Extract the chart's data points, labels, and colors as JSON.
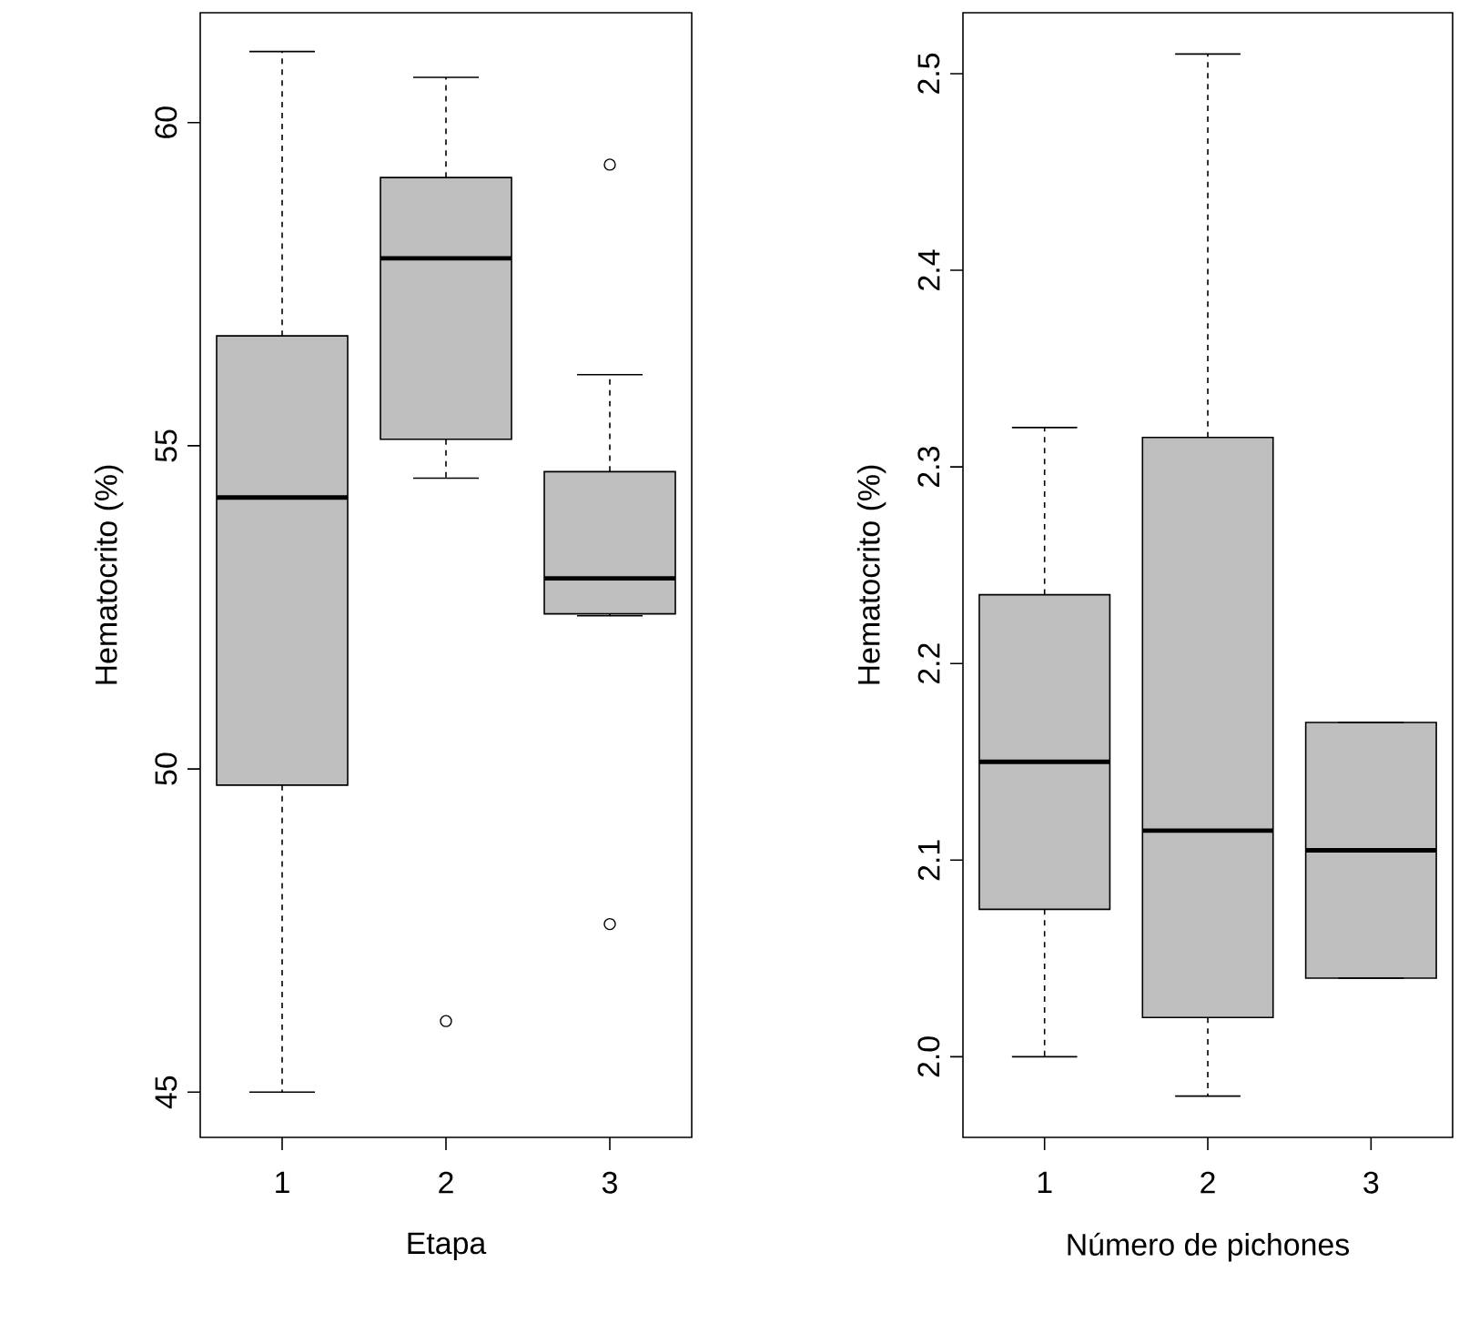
{
  "chart_data": [
    {
      "type": "box",
      "categories": [
        "1",
        "2",
        "3"
      ],
      "xlabel": "Etapa",
      "ylabel": "Hematocrito (%)",
      "ylim": [
        44.3,
        61.7
      ],
      "yticks": [
        45,
        50,
        55,
        60
      ],
      "color": "#bebebe",
      "boxes": [
        {
          "low": 45.0,
          "q1": 49.75,
          "median": 54.2,
          "q3": 56.7,
          "high": 61.1
        },
        {
          "low": 54.5,
          "q1": 55.1,
          "median": 57.9,
          "q3": 59.15,
          "high": 60.7,
          "outliers": [
            46.1
          ]
        },
        {
          "low": 52.37,
          "q1": 52.4,
          "median": 52.95,
          "q3": 54.6,
          "high": 56.1,
          "outliers": [
            59.35,
            47.6
          ]
        }
      ]
    },
    {
      "type": "box",
      "categories": [
        "1",
        "2",
        "3"
      ],
      "xlabel": "Número de pichones",
      "ylabel": "Hematocrito (%)",
      "ylim": [
        1.959,
        2.531
      ],
      "yticks": [
        {
          "value": 2.0,
          "label": "2.0"
        },
        2.1,
        2.2,
        2.3,
        2.4,
        2.5
      ],
      "color": "#bebebe",
      "boxes": [
        {
          "low": 2.0,
          "q1": 2.075,
          "median": 2.15,
          "q3": 2.235,
          "high": 2.32
        },
        {
          "low": 1.98,
          "q1": 2.02,
          "median": 2.115,
          "q3": 2.315,
          "high": 2.51
        },
        {
          "low": 2.04,
          "q1": 2.04,
          "median": 2.105,
          "q3": 2.17,
          "high": 2.17
        }
      ]
    }
  ]
}
